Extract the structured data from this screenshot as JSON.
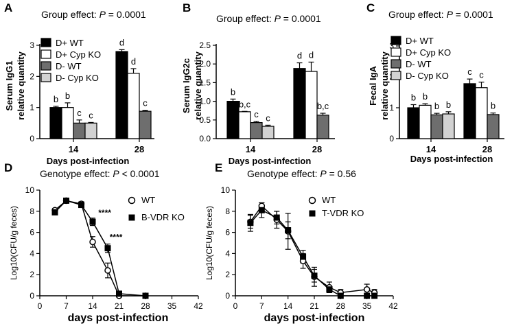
{
  "chart_data": [
    {
      "type": "bar",
      "panel_label": "A",
      "title_prefix": "Group effect:",
      "title_p": "P",
      "title_value": "= 0.0001",
      "ylabel": [
        "Serum IgG1",
        "relative quantity"
      ],
      "xlabel": "Days post-infection",
      "ylim": [
        0,
        3
      ],
      "yticks": [
        0,
        1,
        2,
        3
      ],
      "categories": [
        "14",
        "28"
      ],
      "legend": [
        "D+ WT",
        "D+ Cyp KO",
        "D- WT",
        "D- Cyp KO"
      ],
      "series": [
        {
          "name": "D+ WT",
          "color": "#000000",
          "values": [
            1.0,
            2.8
          ],
          "errors": [
            0.04,
            0.06
          ],
          "labels": [
            "b",
            "d"
          ]
        },
        {
          "name": "D+ Cyp KO",
          "color": "#ffffff",
          "values": [
            1.0,
            2.1
          ],
          "errors": [
            0.15,
            0.15
          ],
          "labels": [
            "b",
            "d"
          ]
        },
        {
          "name": "D- WT",
          "color": "#6e6e6e",
          "values": [
            0.5,
            0.88
          ],
          "errors": [
            0.1,
            0.03
          ],
          "labels": [
            "c",
            "c"
          ]
        },
        {
          "name": "D- Cyp KO",
          "color": "#d2d2d2",
          "values": [
            0.5,
            null
          ],
          "errors": [
            0.02,
            null
          ],
          "labels": [
            "c",
            null
          ]
        }
      ]
    },
    {
      "type": "bar",
      "panel_label": "B",
      "title_prefix": "Group effect:",
      "title_p": "P",
      "title_value": "= 0.0001",
      "ylabel": [
        "Serum IgG2c",
        "relative quantity"
      ],
      "xlabel": "Days post-infection",
      "ylim": [
        0,
        2.5
      ],
      "yticks": [
        0.0,
        0.5,
        1.0,
        1.5,
        2.0,
        2.5
      ],
      "ytick_labels": [
        "0.0",
        "0.5",
        "1.0",
        "1.5",
        "2.0",
        "2.5"
      ],
      "categories": [
        "14",
        "28"
      ],
      "series": [
        {
          "name": "D+ WT",
          "color": "#000000",
          "values": [
            1.0,
            1.88
          ],
          "errors": [
            0.06,
            0.15
          ],
          "labels": [
            "b",
            "d"
          ]
        },
        {
          "name": "D+ Cyp KO",
          "color": "#ffffff",
          "values": [
            0.72,
            1.8
          ],
          "errors": [
            0.01,
            0.25
          ],
          "labels": [
            "b,c",
            "d"
          ]
        },
        {
          "name": "D- WT",
          "color": "#6e6e6e",
          "values": [
            0.43,
            0.63
          ],
          "errors": [
            0.03,
            0.05
          ],
          "labels": [
            "c",
            "b,c"
          ]
        },
        {
          "name": "D- Cyp KO",
          "color": "#d2d2d2",
          "values": [
            0.33,
            null
          ],
          "errors": [
            0.03,
            null
          ],
          "labels": [
            "c",
            null
          ]
        }
      ]
    },
    {
      "type": "bar",
      "panel_label": "C",
      "title_prefix": "Group effect:",
      "title_p": "P",
      "title_value": "= 0.0001",
      "ylabel": [
        "Fecal IgA",
        "relative quantity"
      ],
      "xlabel": "Days post-infection",
      "ylim": [
        0,
        3
      ],
      "yticks": [
        0,
        1,
        2,
        3
      ],
      "categories": [
        "14",
        "28"
      ],
      "legend": [
        "D+ WT",
        "D+ Cyp KO",
        "D- WT",
        "D- Cyp KO"
      ],
      "series": [
        {
          "name": "D+ WT",
          "color": "#000000",
          "values": [
            1.0,
            1.78
          ],
          "errors": [
            0.1,
            0.15
          ],
          "labels": [
            "b",
            "c"
          ]
        },
        {
          "name": "D+ Cyp KO",
          "color": "#ffffff",
          "values": [
            1.08,
            1.65
          ],
          "errors": [
            0.05,
            0.18
          ],
          "labels": [
            "b",
            "c"
          ]
        },
        {
          "name": "D- WT",
          "color": "#6e6e6e",
          "values": [
            0.77,
            0.78
          ],
          "errors": [
            0.05,
            0.05
          ],
          "labels": [
            "b",
            "b"
          ]
        },
        {
          "name": "D- Cyp KO",
          "color": "#d2d2d2",
          "values": [
            0.8,
            null
          ],
          "errors": [
            0.07,
            null
          ],
          "labels": [
            "b",
            null
          ]
        }
      ]
    },
    {
      "type": "line",
      "panel_label": "D",
      "title_prefix": "Genotype effect:",
      "title_p": "P",
      "title_value": "< 0.0001",
      "ylabel": "Log10(CFU/g feces)",
      "xlabel": "days post-infection",
      "xlim": [
        0,
        42
      ],
      "xticks": [
        0,
        7,
        14,
        21,
        28,
        35,
        42
      ],
      "ylim": [
        0,
        10
      ],
      "yticks": [
        0,
        2,
        4,
        6,
        8,
        10
      ],
      "series": [
        {
          "name": "WT",
          "marker": "open-circle",
          "x": [
            4,
            7,
            11,
            14,
            18,
            21,
            28
          ],
          "y": [
            8.1,
            9.0,
            8.7,
            5.1,
            2.4,
            0.0,
            0.0
          ],
          "err": [
            0.15,
            0.2,
            0.2,
            0.5,
            0.7,
            0,
            0
          ]
        },
        {
          "name": "B-VDR KO",
          "marker": "filled-square",
          "x": [
            4,
            7,
            11,
            14,
            18,
            21,
            28
          ],
          "y": [
            7.9,
            9.0,
            8.6,
            7.0,
            4.5,
            0.2,
            0.0
          ],
          "err": [
            0.15,
            0.2,
            0.2,
            0.35,
            0.4,
            0.15,
            0
          ]
        }
      ],
      "annotations": [
        {
          "text": "****",
          "x": 15.5,
          "y": 7.6
        },
        {
          "text": "****",
          "x": 18.5,
          "y": 5.3
        }
      ]
    },
    {
      "type": "line",
      "panel_label": "E",
      "title_prefix": "Genotype effect:",
      "title_p": "P",
      "title_value": "= 0.56",
      "ylabel": "Log10(CFU/g feces)",
      "xlabel": "days post-infection",
      "xlim": [
        0,
        42
      ],
      "xticks": [
        0,
        7,
        14,
        21,
        28,
        35,
        42
      ],
      "ylim": [
        0,
        10
      ],
      "yticks": [
        0,
        2,
        4,
        6,
        8,
        10
      ],
      "series": [
        {
          "name": "WT",
          "marker": "open-circle",
          "x": [
            4,
            7,
            11,
            14,
            18,
            21,
            25,
            28,
            35,
            37
          ],
          "y": [
            7.0,
            8.5,
            7.2,
            6.1,
            3.3,
            1.8,
            0.8,
            0.3,
            0.6,
            0.3
          ],
          "err": [
            0.6,
            0.3,
            0.8,
            1.7,
            0.7,
            0.9,
            0.5,
            0.3,
            0.5,
            0.3
          ]
        },
        {
          "name": "T-VDR KO",
          "marker": "filled-square",
          "x": [
            4,
            7,
            11,
            14,
            18,
            21,
            25,
            28,
            35,
            37
          ],
          "y": [
            6.9,
            8.1,
            7.4,
            6.2,
            3.7,
            1.9,
            0.6,
            0.0,
            0.0,
            0.0
          ],
          "err": [
            0.8,
            0.7,
            0.6,
            0.8,
            0.6,
            0.6,
            0.3,
            0.1,
            0,
            0
          ]
        }
      ]
    }
  ]
}
